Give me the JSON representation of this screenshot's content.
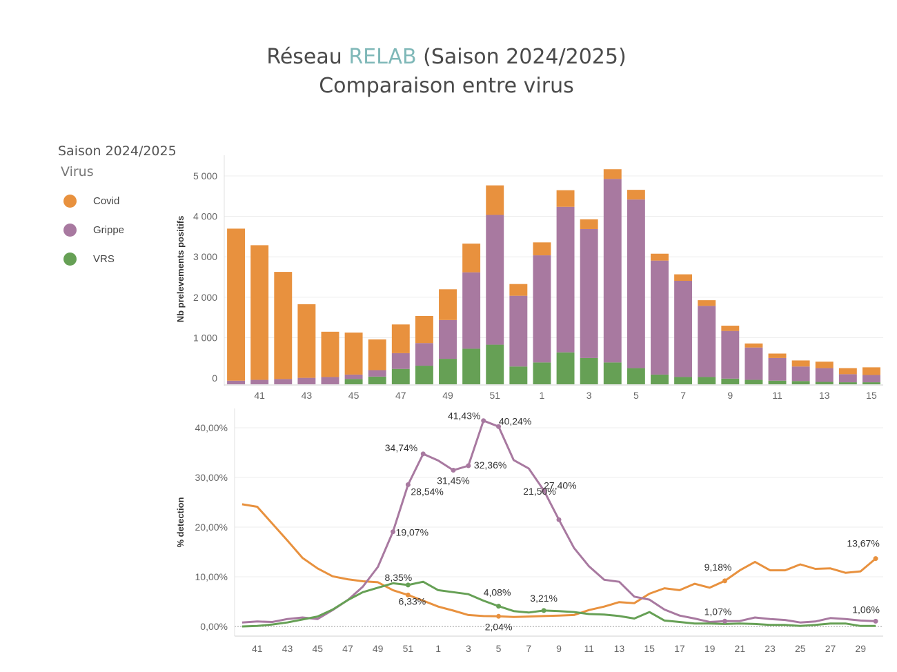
{
  "header": {
    "title_prefix": "Réseau ",
    "title_accent": "RELAB",
    "title_suffix": " (Saison 2024/2025)",
    "subtitle": "Comparaison entre virus"
  },
  "legend": {
    "season": "Saison 2024/2025",
    "title": "Virus",
    "items": [
      {
        "label": "Covid",
        "color": "#e8913e"
      },
      {
        "label": "Grippe",
        "color": "#a879a0"
      },
      {
        "label": "VRS",
        "color": "#66a055"
      }
    ]
  },
  "chart_data": [
    {
      "type": "bar",
      "stacked": true,
      "ylabel": "Nb prelevements positifs",
      "xlabel": "",
      "ylim": [
        0,
        5300
      ],
      "yticks": [
        0,
        1000,
        2000,
        3000,
        4000,
        5000
      ],
      "ytick_labels": [
        "0",
        "1 000",
        "2 000",
        "3 000",
        "4 000",
        "5 000"
      ],
      "grid": true,
      "categories": [
        "40",
        "41",
        "42",
        "43",
        "44",
        "45",
        "46",
        "47",
        "48",
        "49",
        "50",
        "51",
        "52",
        "1",
        "2",
        "3",
        "4",
        "5",
        "6",
        "7",
        "8",
        "9",
        "10",
        "11",
        "12",
        "13",
        "14",
        "15"
      ],
      "xtick_labels": [
        "41",
        "43",
        "45",
        "47",
        "49",
        "51",
        "1",
        "3",
        "5",
        "7",
        "9",
        "11",
        "13",
        "15"
      ],
      "series": [
        {
          "name": "VRS",
          "color": "#66a055",
          "values": [
            0,
            0,
            0,
            0,
            0,
            130,
            190,
            380,
            460,
            630,
            880,
            980,
            440,
            540,
            790,
            650,
            540,
            400,
            240,
            180,
            180,
            140,
            110,
            90,
            80,
            60,
            50,
            50
          ]
        },
        {
          "name": "Grippe",
          "color": "#a879a0",
          "values": [
            90,
            110,
            130,
            160,
            180,
            110,
            160,
            390,
            560,
            960,
            1890,
            3210,
            1750,
            2650,
            3600,
            3190,
            4540,
            4170,
            2820,
            2380,
            1760,
            1180,
            800,
            560,
            360,
            340,
            200,
            180
          ]
        },
        {
          "name": "Covid",
          "color": "#e8913e",
          "values": [
            3760,
            3330,
            2650,
            1820,
            1120,
            1040,
            760,
            710,
            670,
            760,
            710,
            730,
            290,
            320,
            410,
            240,
            240,
            240,
            170,
            160,
            140,
            130,
            100,
            110,
            150,
            160,
            150,
            190
          ]
        }
      ]
    },
    {
      "type": "line",
      "ylabel": "% detection",
      "xlabel": "",
      "ylim": [
        -1,
        42
      ],
      "yticks": [
        0,
        10,
        20,
        30,
        40
      ],
      "ytick_labels": [
        "0,00%",
        "10,00%",
        "20,00%",
        "30,00%",
        "40,00%"
      ],
      "grid": true,
      "x": [
        40,
        41,
        42,
        43,
        44,
        45,
        46,
        47,
        48,
        49,
        50,
        51,
        52,
        1,
        2,
        3,
        4,
        5,
        6,
        7,
        8,
        9,
        10,
        11,
        12,
        13,
        14,
        15,
        16,
        17,
        18,
        19,
        20,
        21,
        22,
        23,
        24,
        25,
        26,
        27,
        28,
        29,
        30
      ],
      "xtick_labels": [
        "41",
        "43",
        "45",
        "47",
        "49",
        "51",
        "1",
        "3",
        "5",
        "7",
        "9",
        "11",
        "13",
        "15",
        "17",
        "19",
        "21",
        "23",
        "25",
        "27",
        "29"
      ],
      "series": [
        {
          "name": "Covid",
          "color": "#e8913e",
          "values": [
            24.6,
            24.1,
            20.7,
            17.3,
            13.8,
            11.7,
            10.1,
            9.5,
            9.1,
            8.9,
            7.3,
            6.33,
            5.2,
            4.0,
            3.2,
            2.3,
            2.1,
            2.04,
            1.9,
            2.0,
            2.1,
            2.2,
            2.3,
            3.3,
            4.0,
            4.9,
            4.7,
            6.6,
            7.7,
            7.3,
            8.6,
            7.8,
            9.18,
            11.3,
            13.0,
            11.3,
            11.3,
            12.5,
            11.6,
            11.7,
            10.8,
            11.1,
            13.67
          ]
        },
        {
          "name": "Grippe",
          "color": "#a879a0",
          "values": [
            0.8,
            1.0,
            0.9,
            1.5,
            1.8,
            1.5,
            3.3,
            5.3,
            8.0,
            12.0,
            19.07,
            28.54,
            34.74,
            33.4,
            31.45,
            32.36,
            41.43,
            40.24,
            33.5,
            31.8,
            27.4,
            21.5,
            15.8,
            12.1,
            9.4,
            9.0,
            6.0,
            5.4,
            3.4,
            2.2,
            1.6,
            0.9,
            1.07,
            1.1,
            1.8,
            1.5,
            1.3,
            0.8,
            1.0,
            1.7,
            1.5,
            1.2,
            1.06
          ]
        },
        {
          "name": "VRS",
          "color": "#66a055",
          "values": [
            0.0,
            0.1,
            0.4,
            0.8,
            1.4,
            2.0,
            3.4,
            5.3,
            6.9,
            7.8,
            8.7,
            8.35,
            9.0,
            7.3,
            6.9,
            6.5,
            5.2,
            4.08,
            3.1,
            2.8,
            3.21,
            3.1,
            2.9,
            2.5,
            2.4,
            2.1,
            1.6,
            2.9,
            1.2,
            0.9,
            0.6,
            0.6,
            0.5,
            0.6,
            0.5,
            0.3,
            0.3,
            0.1,
            0.3,
            0.6,
            0.6,
            0.1,
            0.1
          ]
        }
      ],
      "annotations": [
        {
          "series": "Covid",
          "x": 51,
          "label": "6,33%"
        },
        {
          "series": "Covid",
          "x": 5,
          "label": "2,04%"
        },
        {
          "series": "Covid",
          "x": 20,
          "label": "9,18%"
        },
        {
          "series": "Covid",
          "x": 30,
          "label": "13,67%"
        },
        {
          "series": "Grippe",
          "x": 50,
          "label": "19,07%"
        },
        {
          "series": "Grippe",
          "x": 51,
          "label": "28,54%"
        },
        {
          "series": "Grippe",
          "x": 52,
          "label": "34,74%"
        },
        {
          "series": "Grippe",
          "x": 2,
          "label": "31,45%"
        },
        {
          "series": "Grippe",
          "x": 3,
          "label": "32,36%"
        },
        {
          "series": "Grippe",
          "x": 4,
          "label": "41,43%"
        },
        {
          "series": "Grippe",
          "x": 5,
          "label": "40,24%"
        },
        {
          "series": "Grippe",
          "x": 8,
          "label": "27,40%"
        },
        {
          "series": "Grippe",
          "x": 9,
          "label": "21,50%"
        },
        {
          "series": "Grippe",
          "x": 20,
          "label": "1,07%"
        },
        {
          "series": "Grippe",
          "x": 30,
          "label": "1,06%"
        },
        {
          "series": "VRS",
          "x": 51,
          "label": "8,35%"
        },
        {
          "series": "VRS",
          "x": 5,
          "label": "4,08%"
        },
        {
          "series": "VRS",
          "x": 8,
          "label": "3,21%"
        }
      ]
    }
  ]
}
